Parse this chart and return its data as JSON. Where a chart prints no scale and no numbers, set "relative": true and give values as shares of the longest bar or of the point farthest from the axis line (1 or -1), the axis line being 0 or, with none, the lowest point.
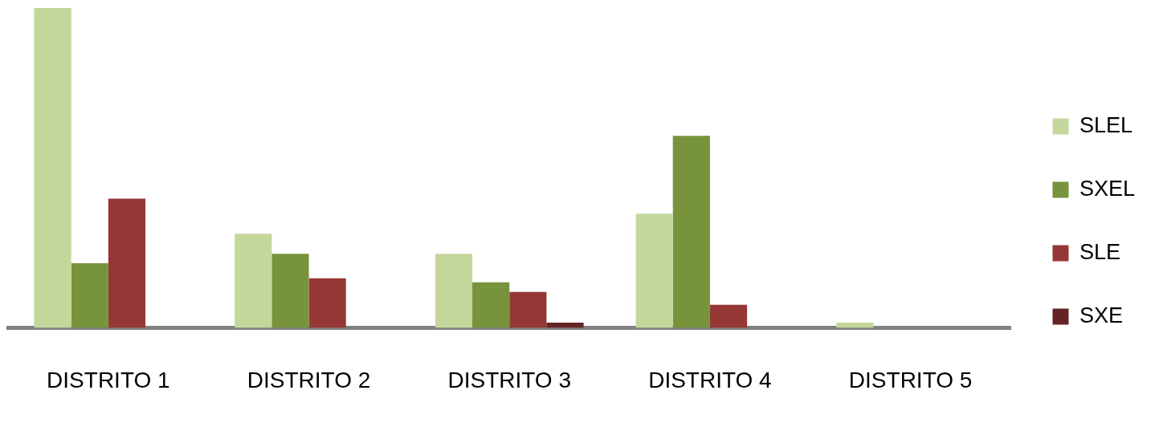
{
  "chart_data": {
    "type": "bar",
    "relative": true,
    "categories": [
      "DISTRITO 1",
      "DISTRITO 2",
      "DISTRITO 3",
      "DISTRITO 4",
      "DISTRITO 5"
    ],
    "legend": "right",
    "grid": false,
    "series": [
      {
        "name": "SLEL",
        "color": "#c4d79b",
        "values": [
          1,
          0.294,
          0.231,
          0.357,
          0.016
        ]
      },
      {
        "name": "SXEL",
        "color": "#77933c",
        "values": [
          0.202,
          0.231,
          0.142,
          0.6,
          0
        ]
      },
      {
        "name": "SLE",
        "color": "#953735",
        "values": [
          0.404,
          0.155,
          0.112,
          0.072,
          0
        ]
      },
      {
        "name": "SXE",
        "color": "#632523",
        "values": [
          0,
          0,
          0.016,
          0,
          0
        ]
      }
    ]
  }
}
